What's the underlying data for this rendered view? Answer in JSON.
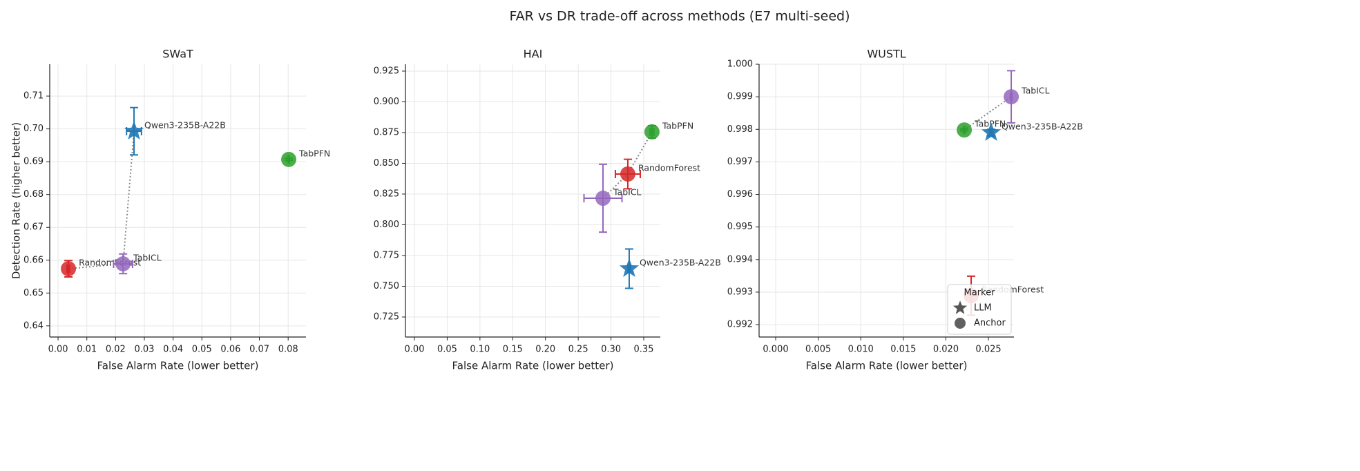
{
  "figure_title": "FAR vs DR trade-off across methods (E7 multi-seed)",
  "chart_data": [
    {
      "type": "scatter",
      "title": "SWaT",
      "xlabel": "False Alarm Rate (lower better)",
      "ylabel": "Detection Rate (higher better)",
      "xlim": [
        -0.0029,
        0.0862
      ],
      "ylim": [
        0.6366,
        0.7197
      ],
      "grid": true,
      "xticks": [
        {
          "value": 0,
          "label": "0.00"
        },
        0.01,
        0.02,
        0.03,
        0.04,
        0.05,
        0.06,
        0.07,
        0.08
      ],
      "yticks": [
        0.64,
        0.65,
        0.66,
        0.67,
        0.68,
        0.69,
        {
          "value": 0.7,
          "label": "0.70"
        },
        0.71
      ],
      "frontier": [
        "RandomForest",
        "TabICL",
        "Qwen3-235B-A22B"
      ],
      "series": [
        {
          "name": "RandomForest",
          "color": "#d62728",
          "marker": "circle",
          "x": [
            0.0036
          ],
          "values": [
            0.6574
          ],
          "xerr": [
            0.0005
          ],
          "yerr": [
            0.0025
          ]
        },
        {
          "name": "TabPFN",
          "color": "#2ca02c",
          "marker": "circle",
          "x": [
            0.0802
          ],
          "values": [
            0.6907
          ],
          "xerr": [
            0.0002
          ],
          "yerr": [
            0.0003
          ]
        },
        {
          "name": "TabICL",
          "color": "#9467bd",
          "marker": "circle",
          "x": [
            0.0226
          ],
          "values": [
            0.6589
          ],
          "xerr": [
            0.0033
          ],
          "yerr": [
            0.003
          ]
        },
        {
          "name": "Qwen3-235B-A22B",
          "color": "#1f77b4",
          "marker": "star",
          "x": [
            0.0264
          ],
          "values": [
            0.6993
          ],
          "xerr": [
            0.0026
          ],
          "yerr": [
            0.0072
          ]
        }
      ]
    },
    {
      "type": "scatter",
      "title": "HAI",
      "xlabel": "False Alarm Rate (lower better)",
      "xlim": [
        -0.0137,
        0.3753
      ],
      "ylim": [
        0.7087,
        0.9306
      ],
      "grid": true,
      "xticks": [
        {
          "value": 0,
          "label": "0.00"
        },
        0.05,
        {
          "value": 0.1,
          "label": "0.10"
        },
        0.15,
        {
          "value": 0.2,
          "label": "0.20"
        },
        0.25,
        {
          "value": 0.3,
          "label": "0.30"
        },
        0.35
      ],
      "yticks": [
        0.725,
        {
          "value": 0.75,
          "label": "0.750"
        },
        0.775,
        {
          "value": 0.8,
          "label": "0.800"
        },
        0.825,
        {
          "value": 0.85,
          "label": "0.850"
        },
        0.875,
        {
          "value": 0.9,
          "label": "0.900"
        },
        0.925
      ],
      "frontier": [
        "TabICL",
        "RandomForest",
        "TabPFN"
      ],
      "series": [
        {
          "name": "RandomForest",
          "color": "#d62728",
          "marker": "circle",
          "x": [
            0.3257
          ],
          "values": [
            0.8413
          ],
          "xerr": [
            0.019
          ],
          "yerr": [
            0.012
          ]
        },
        {
          "name": "TabPFN",
          "color": "#2ca02c",
          "marker": "circle",
          "x": [
            0.3626
          ],
          "values": [
            0.8756
          ],
          "xerr": [
            0.003
          ],
          "yerr": [
            0.005
          ]
        },
        {
          "name": "TabICL",
          "color": "#9467bd",
          "marker": "circle",
          "x": [
            0.2878
          ],
          "values": [
            0.8216
          ],
          "xerr": [
            0.029
          ],
          "yerr": [
            0.0276
          ]
        },
        {
          "name": "Qwen3-235B-A22B",
          "color": "#1f77b4",
          "marker": "star",
          "x": [
            0.3278
          ],
          "values": [
            0.7643
          ],
          "xerr": [
            0.002
          ],
          "yerr": [
            0.016
          ]
        }
      ]
    },
    {
      "type": "scatter",
      "title": "WUSTL",
      "xlabel": "False Alarm Rate (lower better)",
      "xlim": [
        -0.00195,
        0.028
      ],
      "ylim": [
        0.99162,
        1.0
      ],
      "grid": true,
      "xticks": [
        {
          "value": 0,
          "label": "0.000"
        },
        0.005,
        {
          "value": 0.01,
          "label": "0.010"
        },
        0.015,
        {
          "value": 0.02,
          "label": "0.020"
        },
        0.025
      ],
      "yticks": [
        0.992,
        0.993,
        0.994,
        0.995,
        0.996,
        0.997,
        0.998,
        0.999,
        {
          "value": 1,
          "label": "1.000"
        }
      ],
      "frontier": [
        "TabPFN",
        "TabICL"
      ],
      "legend": {
        "title": "Marker",
        "loc": "lower right",
        "entries": [
          {
            "label": "LLM",
            "marker": "star"
          },
          {
            "label": "Anchor",
            "marker": "circle"
          }
        ]
      },
      "series": [
        {
          "name": "RandomForest",
          "color": "#d62728",
          "marker": "circle",
          "x": [
            0.02297
          ],
          "values": [
            0.99289
          ],
          "xerr": [
            0.0001
          ],
          "yerr": [
            0.0006
          ]
        },
        {
          "name": "TabPFN",
          "color": "#2ca02c",
          "marker": "circle",
          "x": [
            0.02216
          ],
          "values": [
            0.99798
          ],
          "xerr": [
            0.0001
          ],
          "yerr": [
            3e-05
          ]
        },
        {
          "name": "TabICL",
          "color": "#9467bd",
          "marker": "circle",
          "x": [
            0.02768
          ],
          "values": [
            0.999
          ],
          "xerr": [
            0.0001
          ],
          "yerr": [
            0.0008
          ]
        },
        {
          "name": "Qwen3-235B-A22B",
          "color": "#1f77b4",
          "marker": "star",
          "x": [
            0.02532
          ],
          "values": [
            0.9979
          ],
          "xerr": [
            0.0002
          ],
          "yerr": [
            0.0001
          ]
        }
      ]
    }
  ]
}
